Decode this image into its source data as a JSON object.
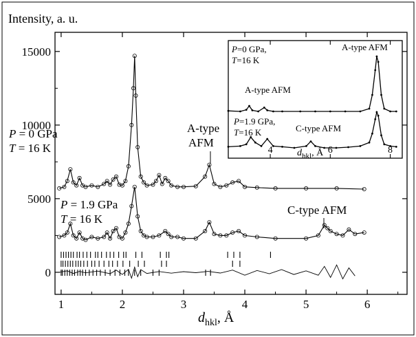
{
  "chart_data": {
    "type": "line",
    "title": "",
    "ylabel": "Intensity, a. u.",
    "xlabel_main": "d",
    "xlabel_sub": "hkl",
    "xlabel_unit": ", Å",
    "xlim": [
      0.9,
      6.65
    ],
    "ylim": [
      -1500,
      16300
    ],
    "x_ticks": [
      1,
      2,
      3,
      4,
      5,
      6
    ],
    "y_ticks": [
      0,
      5000,
      10000,
      15000
    ],
    "annotations": {
      "p0_P": "P",
      "p0_P_val": " = 0 GPa",
      "p0_T": "T",
      "p0_T_val": " = 16 K",
      "p19_P": "P",
      "p19_P_val": " = 1.9 GPa",
      "p19_T": "T",
      "p19_T_val": " = 16 K",
      "a_type_line1": "A-type",
      "a_type_line2": "AFM",
      "c_type": "C-type  AFM"
    },
    "series": [
      {
        "x": [
          0.97,
          1.05,
          1.1,
          1.15,
          1.2,
          1.25,
          1.3,
          1.35,
          1.4,
          1.5,
          1.6,
          1.7,
          1.75,
          1.8,
          1.85,
          1.9,
          1.95,
          2.0,
          2.05,
          2.1,
          2.15,
          2.18,
          2.2,
          2.22,
          2.25,
          2.3,
          2.35,
          2.4,
          2.5,
          2.55,
          2.6,
          2.65,
          2.7,
          2.75,
          2.8,
          2.9,
          3.0,
          3.2,
          3.35,
          3.42,
          3.5,
          3.6,
          3.7,
          3.8,
          3.9,
          4.0,
          4.2,
          4.5,
          5.0,
          5.5,
          5.95
        ],
        "y": [
          5700,
          5800,
          6200,
          7000,
          6100,
          5900,
          6400,
          5900,
          5800,
          5900,
          5800,
          6000,
          6200,
          5950,
          6300,
          6500,
          5950,
          5900,
          6200,
          7200,
          10000,
          12500,
          14700,
          12000,
          8500,
          6500,
          6100,
          5900,
          5950,
          6200,
          6600,
          6000,
          6400,
          6200,
          5900,
          5800,
          5800,
          5850,
          6500,
          7300,
          6000,
          5800,
          5900,
          6100,
          6200,
          5800,
          5750,
          5700,
          5700,
          5700,
          5650
        ]
      },
      {
        "x": [
          0.97,
          1.05,
          1.1,
          1.15,
          1.2,
          1.25,
          1.3,
          1.35,
          1.4,
          1.5,
          1.6,
          1.7,
          1.75,
          1.8,
          1.85,
          1.9,
          1.95,
          2.0,
          2.05,
          2.1,
          2.15,
          2.2,
          2.25,
          2.3,
          2.35,
          2.4,
          2.5,
          2.6,
          2.7,
          2.75,
          2.8,
          2.9,
          3.0,
          3.2,
          3.35,
          3.42,
          3.5,
          3.6,
          3.7,
          3.8,
          3.9,
          4.0,
          4.2,
          4.5,
          5.0,
          5.2,
          5.3,
          5.35,
          5.4,
          5.5,
          5.6,
          5.7,
          5.8,
          5.95
        ],
        "y": [
          2400,
          2500,
          2700,
          3300,
          2500,
          2300,
          2700,
          2300,
          2200,
          2400,
          2300,
          2400,
          2700,
          2300,
          2800,
          3000,
          2400,
          2300,
          2700,
          3300,
          4500,
          5800,
          3800,
          2800,
          2500,
          2400,
          2400,
          2500,
          2800,
          2600,
          2400,
          2400,
          2300,
          2300,
          2800,
          3400,
          2600,
          2500,
          2500,
          2700,
          2800,
          2500,
          2400,
          2300,
          2300,
          2500,
          3200,
          3000,
          2800,
          2600,
          2500,
          2900,
          2600,
          2700
        ]
      },
      {
        "x": [
          0.97,
          1.1,
          1.2,
          1.3,
          1.4,
          1.6,
          1.8,
          1.9,
          2.0,
          2.1,
          2.15,
          2.2,
          2.25,
          2.3,
          2.4,
          2.6,
          2.8,
          3.0,
          3.2,
          3.4,
          3.6,
          3.8,
          4.0,
          4.2,
          4.4,
          4.6,
          4.8,
          5.0,
          5.2,
          5.3,
          5.4,
          5.5,
          5.6,
          5.7,
          5.8
        ],
        "y": [
          0,
          100,
          -80,
          60,
          -40,
          80,
          -100,
          150,
          -150,
          200,
          -400,
          350,
          -300,
          180,
          -80,
          50,
          -60,
          40,
          -30,
          60,
          -50,
          150,
          -200,
          120,
          -100,
          180,
          -150,
          100,
          -200,
          400,
          -350,
          500,
          -450,
          300,
          -250
        ]
      }
    ],
    "tick_rows": [
      [
        1.0,
        1.04,
        1.08,
        1.12,
        1.16,
        1.2,
        1.26,
        1.3,
        1.36,
        1.42,
        1.48,
        1.56,
        1.6,
        1.66,
        1.74,
        1.8,
        1.86,
        1.94,
        2.02,
        2.06,
        2.22,
        2.32,
        2.62,
        2.72,
        2.76,
        3.72,
        3.82,
        3.92,
        4.42
      ],
      [
        1.0,
        1.03,
        1.07,
        1.11,
        1.15,
        1.19,
        1.24,
        1.28,
        1.32,
        1.37,
        1.43,
        1.5,
        1.55,
        1.62,
        1.7,
        1.78,
        1.84,
        1.92,
        2.01,
        2.12,
        2.26,
        2.36,
        2.64,
        2.72,
        3.8,
        3.92
      ],
      [
        1.0,
        1.02,
        1.06,
        1.1,
        1.14,
        1.18,
        1.22,
        1.27,
        1.31,
        1.35,
        1.4,
        1.46,
        1.52,
        1.58,
        1.64,
        1.72,
        1.8,
        1.88,
        1.96,
        2.04,
        2.1,
        2.2,
        2.3,
        2.5,
        2.6,
        3.36,
        3.44
      ]
    ],
    "inset": {
      "xlim": [
        2.6,
        8.4
      ],
      "x_ticks": [
        4,
        6,
        8
      ],
      "xlabel_main": "d",
      "xlabel_sub": "hkl",
      "xlabel_unit": ", Å",
      "annotations": {
        "p0_P": "P",
        "p0_P_val": "=0 GPa,",
        "p0_T": "T",
        "p0_T_val": "=16 K",
        "p19_P": "P",
        "p19_P_val": "=1.9 GPa,",
        "p19_T": "T",
        "p19_T_val": "=16 K",
        "a_type_afm_1": "A-type  AFM",
        "a_type_afm_2": "A-type  AFM",
        "c_type_afm": "C-type  AFM"
      },
      "series": [
        {
          "x": [
            2.6,
            3.0,
            3.2,
            3.3,
            3.4,
            3.6,
            3.8,
            3.9,
            4.1,
            4.4,
            5.0,
            5.5,
            6.0,
            6.5,
            7.0,
            7.3,
            7.4,
            7.5,
            7.55,
            7.6,
            7.7,
            7.8,
            8.0,
            8.2
          ],
          "y": [
            0.01,
            0.0,
            0.03,
            0.1,
            0.02,
            0.0,
            0.07,
            0.02,
            0.0,
            0.0,
            0.0,
            0.0,
            0.0,
            0.0,
            0.0,
            0.05,
            0.3,
            0.75,
            1.0,
            0.9,
            0.3,
            0.05,
            0.0,
            0.0
          ]
        },
        {
          "x": [
            2.6,
            3.0,
            3.2,
            3.35,
            3.5,
            3.7,
            3.9,
            4.1,
            4.4,
            4.8,
            5.2,
            5.35,
            5.5,
            5.8,
            6.2,
            6.6,
            7.0,
            7.3,
            7.4,
            7.5,
            7.55,
            7.6,
            7.7,
            7.8,
            8.0,
            8.2
          ],
          "y": [
            0.03,
            0.05,
            0.1,
            0.3,
            0.15,
            0.05,
            0.25,
            0.05,
            0.03,
            0.0,
            0.05,
            0.18,
            0.05,
            0.0,
            0.0,
            0.02,
            0.05,
            0.15,
            0.4,
            0.8,
            1.0,
            0.9,
            0.35,
            0.1,
            0.05,
            0.03
          ]
        }
      ]
    }
  }
}
